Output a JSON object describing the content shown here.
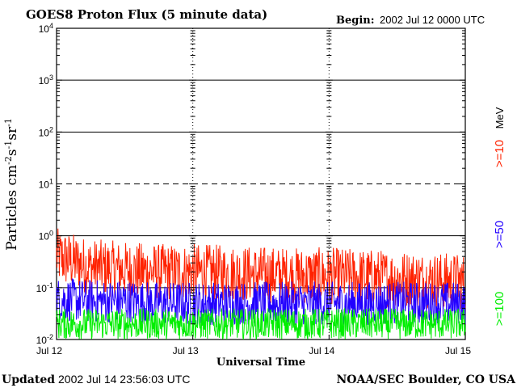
{
  "header": {
    "title": "GOES8 Proton Flux (5 minute data)",
    "begin_label": "Begin:",
    "begin_value": "2002 Jul 12 0000 UTC"
  },
  "footer": {
    "updated_label": "Updated",
    "updated_value": "2002 Jul 14 23:56:03 UTC",
    "credit": "NOAA/SEC Boulder, CO USA"
  },
  "legend": {
    "unit": "MeV",
    "items": [
      {
        "label": ">=10",
        "color": "#ff2200"
      },
      {
        "label": ">=50",
        "color": "#2200ff"
      },
      {
        "label": ">=100",
        "color": "#00ee00"
      }
    ]
  },
  "chart_data": {
    "type": "line",
    "title": "GOES8 Proton Flux (5 minute data)",
    "xlabel": "Universal Time",
    "ylabel": "Particles cm-2s-1sr-1",
    "y_scale": "log",
    "ylim": [
      0.01,
      10000
    ],
    "xlim": [
      "2002-07-12 00:00",
      "2002-07-15 00:00"
    ],
    "x_ticks": [
      "Jul 12",
      "Jul 13",
      "Jul 14",
      "Jul 15"
    ],
    "y_ticks": [
      {
        "base": "10",
        "exp": "-2"
      },
      {
        "base": "10",
        "exp": "-1"
      },
      {
        "base": "10",
        "exp": "0"
      },
      {
        "base": "10",
        "exp": "1"
      },
      {
        "base": "10",
        "exp": "2"
      },
      {
        "base": "10",
        "exp": "3"
      },
      {
        "base": "10",
        "exp": "4"
      }
    ],
    "grid": true,
    "dashed_reference_level": 10,
    "series": [
      {
        "name": ">=10 MeV",
        "color": "#ff2200",
        "x": [
          "2002-07-12 00:00",
          "2002-07-12 06:00",
          "2002-07-12 12:00",
          "2002-07-12 18:00",
          "2002-07-13 00:00",
          "2002-07-13 06:00",
          "2002-07-13 12:00",
          "2002-07-13 18:00",
          "2002-07-14 00:00",
          "2002-07-14 06:00",
          "2002-07-14 12:00",
          "2002-07-14 18:00",
          "2002-07-15 00:00"
        ],
        "values": [
          0.4,
          0.25,
          0.22,
          0.2,
          0.2,
          0.19,
          0.18,
          0.17,
          0.17,
          0.16,
          0.15,
          0.14,
          0.13
        ]
      },
      {
        "name": ">=50 MeV",
        "color": "#2200ff",
        "x": [
          "2002-07-12 00:00",
          "2002-07-12 06:00",
          "2002-07-12 12:00",
          "2002-07-12 18:00",
          "2002-07-13 00:00",
          "2002-07-13 06:00",
          "2002-07-13 12:00",
          "2002-07-13 18:00",
          "2002-07-14 00:00",
          "2002-07-14 06:00",
          "2002-07-14 12:00",
          "2002-07-14 18:00",
          "2002-07-15 00:00"
        ],
        "values": [
          0.06,
          0.055,
          0.055,
          0.05,
          0.05,
          0.05,
          0.05,
          0.05,
          0.05,
          0.05,
          0.05,
          0.05,
          0.05
        ]
      },
      {
        "name": ">=100 MeV",
        "color": "#00ee00",
        "x": [
          "2002-07-12 00:00",
          "2002-07-12 06:00",
          "2002-07-12 12:00",
          "2002-07-12 18:00",
          "2002-07-13 00:00",
          "2002-07-13 06:00",
          "2002-07-13 12:00",
          "2002-07-13 18:00",
          "2002-07-14 00:00",
          "2002-07-14 06:00",
          "2002-07-14 12:00",
          "2002-07-14 18:00",
          "2002-07-15 00:00"
        ],
        "values": [
          0.02,
          0.02,
          0.02,
          0.02,
          0.02,
          0.02,
          0.02,
          0.02,
          0.02,
          0.02,
          0.02,
          0.02,
          0.02
        ]
      }
    ]
  }
}
